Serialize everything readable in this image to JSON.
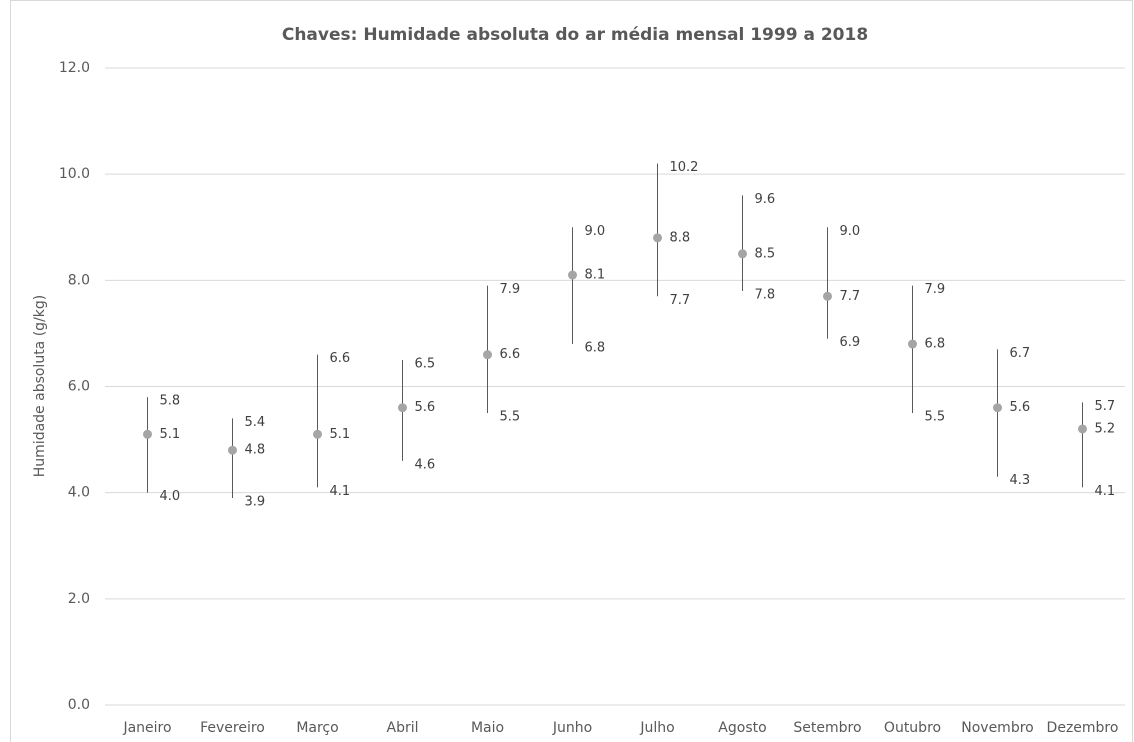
{
  "chart_data": {
    "type": "hilo",
    "title": "Chaves: Humidade absoluta do ar média mensal 1999 a 2018",
    "y_label": "Humidade absoluta  (g/kg)",
    "categories": [
      "Janeiro",
      "Fevereiro",
      "Março",
      "Abril",
      "Maio",
      "Junho",
      "Julho",
      "Agosto",
      "Setembro",
      "Outubro",
      "Novembro",
      "Dezembro"
    ],
    "values": [
      5.1,
      4.8,
      5.1,
      5.6,
      6.6,
      8.1,
      8.8,
      8.5,
      7.7,
      6.8,
      5.6,
      5.2
    ],
    "high": [
      5.8,
      5.4,
      6.6,
      6.5,
      7.9,
      9.0,
      10.2,
      9.6,
      9.0,
      7.9,
      6.7,
      5.7
    ],
    "high_labels": [
      "5.8",
      "5.4",
      "6.6",
      "6.5",
      "7.9",
      "9.0",
      "10.2",
      "9.6",
      "9.0",
      "7.9",
      "6.7",
      "5.7"
    ],
    "low": [
      4.0,
      3.9,
      4.1,
      4.6,
      5.5,
      6.8,
      7.7,
      7.8,
      6.9,
      5.5,
      4.3,
      4.1
    ],
    "low_labels": [
      "4.0",
      "3.9",
      "4.1",
      "4.6",
      "5.5",
      "6.8",
      "7.7",
      "7.8",
      "6.9",
      "5.5",
      "4.3",
      "4.1"
    ],
    "color": "#a5a5a5",
    "line_color": "#595959",
    "ylim": [
      0,
      12
    ],
    "yticks": [
      {
        "value": 0,
        "label": "0.0"
      },
      {
        "value": 2,
        "label": "2.0"
      },
      {
        "value": 4,
        "label": "4.0"
      },
      {
        "value": 6,
        "label": "6.0"
      },
      {
        "value": 8,
        "label": "8.0"
      },
      {
        "value": 10,
        "label": "10.0"
      },
      {
        "value": 12,
        "label": "12.0"
      }
    ],
    "grid": true
  }
}
